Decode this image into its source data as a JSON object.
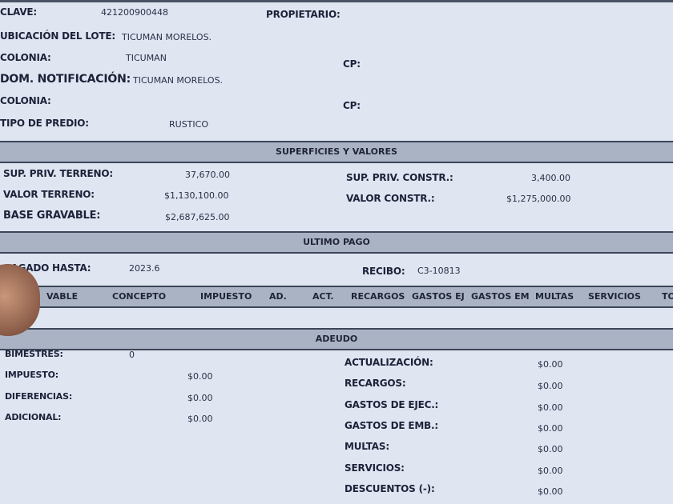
{
  "header": {
    "clave_label": "CLAVE:",
    "clave": "421200900448",
    "propietario_label": "PROPIETARIO:",
    "ubicacion_label": "UBICACIÓN DEL LOTE:",
    "ubicacion": "TICUMAN MORELOS.",
    "colonia_label": "COLONIA:",
    "colonia": "TICUMAN",
    "cp_label": "CP:",
    "dom_label": "DOM. NOTIFICACIÓN:",
    "dom": "TICUMAN MORELOS.",
    "colonia2_label": "COLONIA:",
    "cp2_label": "CP:",
    "tipo_label": "TIPO DE PREDIO:",
    "tipo": "RUSTICO"
  },
  "superficies": {
    "title": "SUPERFICIES Y VALORES",
    "sup_terreno_label": "SUP. PRIV. TERRENO:",
    "sup_terreno": "37,670.00",
    "valor_terreno_label": "VALOR TERRENO:",
    "valor_terreno": "$1,130,100.00",
    "base_label": "BASE GRAVABLE:",
    "base": "$2,687,625.00",
    "sup_constr_label": "SUP. PRIV. CONSTR.:",
    "sup_constr": "3,400.00",
    "valor_constr_label": "VALOR CONSTR.:",
    "valor_constr": "$1,275,000.00"
  },
  "ultimo_pago": {
    "title": "ULTIMO PAGO",
    "pagado_label": "PAGADO HASTA:",
    "pagado": "2023.6",
    "recibo_label": "RECIBO:",
    "recibo": "C3-10813"
  },
  "columns": [
    "VABLE",
    "CONCEPTO",
    "IMPUESTO",
    "AD.",
    "ACT.",
    "RECARGOS",
    "GASTOS EJ",
    "GASTOS EM",
    "MULTAS",
    "SERVICIOS",
    "TO"
  ],
  "adeudo": {
    "title": "ADEUDO",
    "left": [
      {
        "label": "BIMESTRES:",
        "value": "0"
      },
      {
        "label": "IMPUESTO:",
        "value": "$0.00"
      },
      {
        "label": "DIFERENCIAS:",
        "value": "$0.00"
      },
      {
        "label": "ADICIONAL:",
        "value": "$0.00"
      }
    ],
    "right": [
      {
        "label": "ACTUALIZACIÓN:",
        "value": "$0.00"
      },
      {
        "label": "RECARGOS:",
        "value": "$0.00"
      },
      {
        "label": "GASTOS DE EJEC.:",
        "value": "$0.00"
      },
      {
        "label": "GASTOS DE EMB.:",
        "value": "$0.00"
      },
      {
        "label": "MULTAS:",
        "value": "$0.00"
      },
      {
        "label": "SERVICIOS:",
        "value": "$0.00"
      },
      {
        "label": "DESCUENTOS (-):",
        "value": "$0.00"
      }
    ]
  }
}
